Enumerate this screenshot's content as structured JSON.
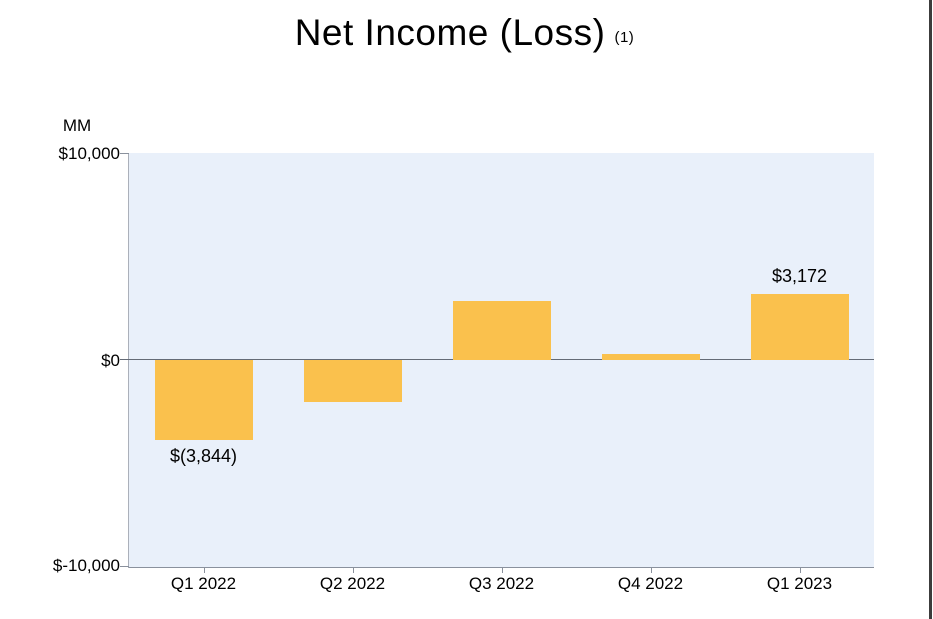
{
  "title": {
    "text": "Net Income (Loss)",
    "footnote": "(1)"
  },
  "y_axis": {
    "unit": "MM",
    "tick_labels": [
      "$10,000",
      "$0",
      "$-10,000"
    ]
  },
  "chart_data": {
    "type": "bar",
    "title": "Net Income (Loss) (1)",
    "ylabel": "MM",
    "xlabel": "",
    "categories": [
      "Q1 2022",
      "Q2 2022",
      "Q3 2022",
      "Q4 2022",
      "Q1 2023"
    ],
    "values": [
      -3844,
      -2028,
      2872,
      278,
      3172
    ],
    "data_labels": [
      "$(3,844)",
      "",
      "",
      "",
      "$3,172"
    ],
    "ylim": [
      -10000,
      10000
    ],
    "y_tick_values": [
      10000,
      0,
      -10000
    ],
    "grid": false,
    "legend": false,
    "bar_color": "#FAC14D",
    "plot_background": "#E9F0FA",
    "zero_line_color": "#646B76",
    "axis_line_color": "#8A919D",
    "page_border_color": "#3C3C3C",
    "text_color": "#000000"
  }
}
